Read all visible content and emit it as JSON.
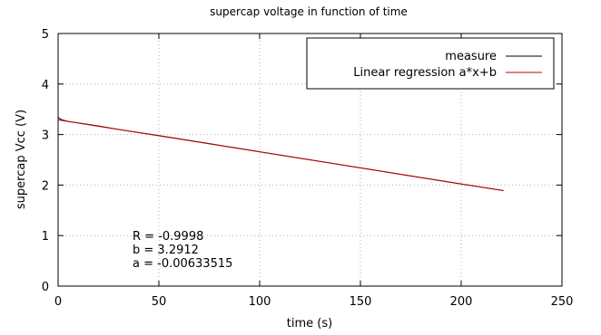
{
  "chart_data": {
    "type": "line",
    "title": "supercap voltage in function of time",
    "xlabel": "time (s)",
    "ylabel": "supercap Vcc (V)",
    "xlim": [
      0,
      250
    ],
    "ylim": [
      0,
      5
    ],
    "xticks": [
      0,
      50,
      100,
      150,
      200,
      250
    ],
    "yticks": [
      0,
      1,
      2,
      3,
      4,
      5
    ],
    "grid": true,
    "legend_position": "top-right",
    "series": [
      {
        "name": "measure",
        "color": "#000000",
        "x": [
          0,
          1,
          2,
          3,
          5,
          10,
          20,
          30,
          50,
          75,
          100,
          125,
          150,
          175,
          200,
          221
        ],
        "y": [
          3.34,
          3.31,
          3.29,
          3.28,
          3.26,
          3.23,
          3.17,
          3.1,
          2.98,
          2.82,
          2.66,
          2.5,
          2.34,
          2.18,
          2.02,
          1.89
        ]
      },
      {
        "name": "Linear regression a*x+b",
        "color": "#c00000",
        "x": [
          0,
          221
        ],
        "y": [
          3.2912,
          1.8911
        ]
      }
    ],
    "annotations": [
      "R = -0.9998",
      "b = 3.2912",
      "a = -0.00633515"
    ]
  }
}
